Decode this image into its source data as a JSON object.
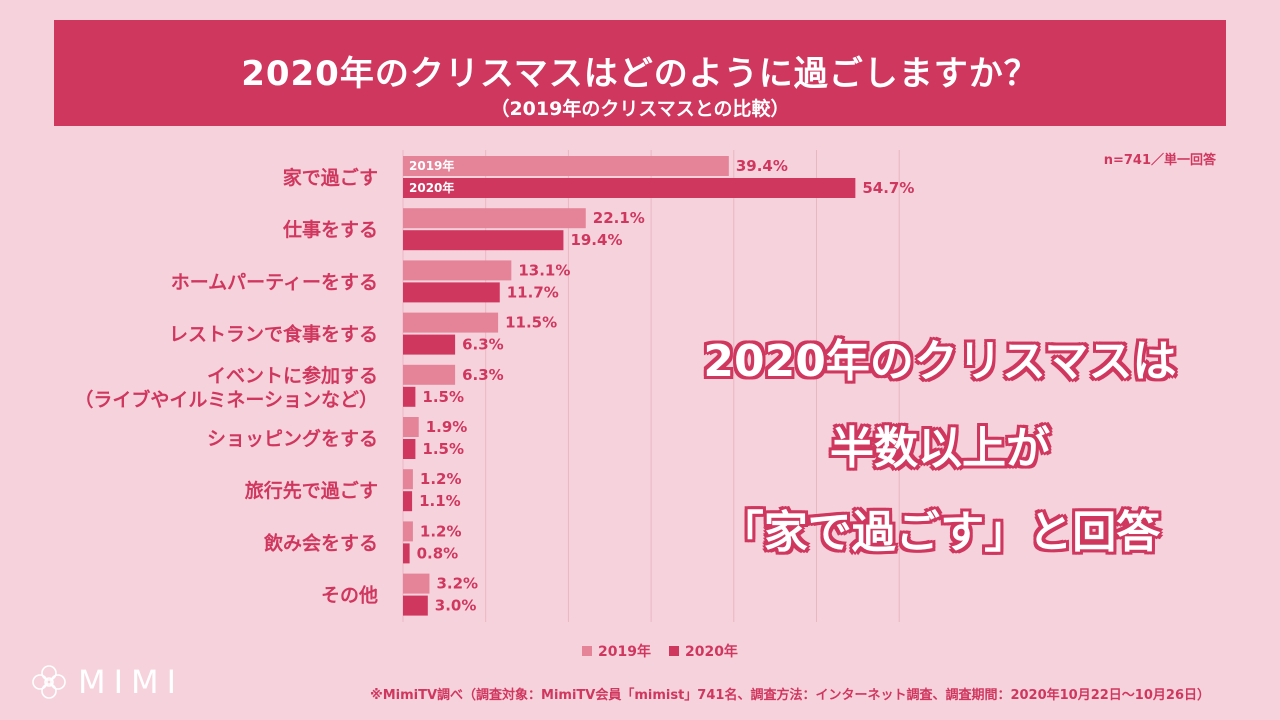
{
  "header": {
    "title": "2020年のクリスマスはどのように過ごしますか？",
    "subtitle": "（2019年のクリスマスとの比較）"
  },
  "sample_note": "n=741／単一回答",
  "colors": {
    "accent": "#d0375f",
    "series_2019": "#e58499",
    "series_2020": "#d0375f",
    "background": "#f6d3dc"
  },
  "chart_data": {
    "type": "bar",
    "orientation": "horizontal",
    "categories": [
      "家で過ごす",
      "仕事をする",
      "ホームパーティーをする",
      "レストランで食事をする",
      "イベントに参加する\n（ライブやイルミネーションなど）",
      "ショッピングをする",
      "旅行先で過ごす",
      "飲み会をする",
      "その他"
    ],
    "series": [
      {
        "name": "2019年",
        "values": [
          39.4,
          22.1,
          13.1,
          11.5,
          6.3,
          1.9,
          1.2,
          1.2,
          3.2
        ]
      },
      {
        "name": "2020年",
        "values": [
          54.7,
          19.4,
          11.7,
          6.3,
          1.5,
          1.5,
          1.1,
          0.8,
          3.0
        ]
      }
    ],
    "value_labels": [
      [
        "39.4%",
        "22.1%",
        "13.1%",
        "11.5%",
        "6.3%",
        "1.9%",
        "1.2%",
        "1.2%",
        "3.2%"
      ],
      [
        "54.7%",
        "19.4%",
        "11.7%",
        "6.3%",
        "1.5%",
        "1.5%",
        "1.1%",
        "0.8%",
        "3.0%"
      ]
    ],
    "inbar_labels": [
      "2019年",
      "2020年"
    ],
    "xlim": [
      0,
      60
    ],
    "grid": true,
    "legend": "bottom"
  },
  "legend_labels": {
    "s2019": "2019年",
    "s2020": "2020年"
  },
  "callout": {
    "line1": "2020年のクリスマスは",
    "line2": "半数以上が",
    "line3": "「家で過ごす」と回答"
  },
  "logo": {
    "word": "MIMI",
    "icon": "mimi-flower-icon"
  },
  "footer": "※MimiTV調べ（調査対象：MimiTV会員「mimist」741名、調査方法：インターネット調査、調査期間：2020年10月22日〜10月26日）"
}
